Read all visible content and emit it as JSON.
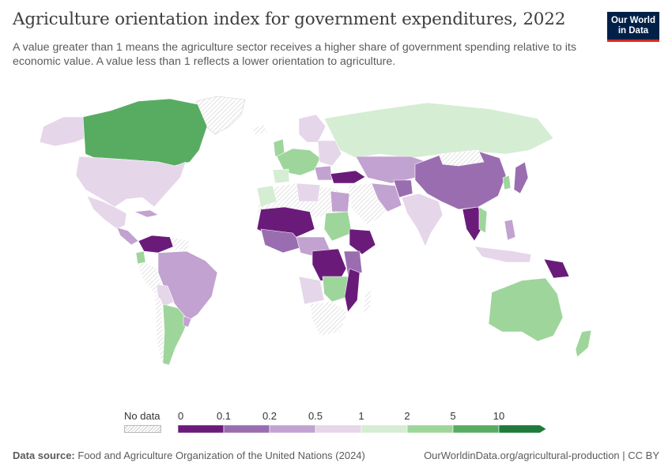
{
  "header": {
    "title": "Agriculture orientation index for government expenditures, 2022",
    "subtitle": "A value greater than 1 means the agriculture sector receives a higher share of government spending relative to its economic value. A value less than 1 reflects a lower orientation to agriculture."
  },
  "logo": {
    "line1": "Our World",
    "line2": "in Data"
  },
  "legend": {
    "no_data_label": "No data",
    "ticks": [
      "0",
      "0.1",
      "0.2",
      "0.5",
      "1",
      "2",
      "5",
      "10"
    ],
    "bins": [
      {
        "from": "0",
        "to": "0.1",
        "color": "#6a1b7a"
      },
      {
        "from": "0.1",
        "to": "0.2",
        "color": "#9a6db0"
      },
      {
        "from": "0.2",
        "to": "0.5",
        "color": "#c2a2d0"
      },
      {
        "from": "0.5",
        "to": "1",
        "color": "#e6d6ea"
      },
      {
        "from": "1",
        "to": "2",
        "color": "#d5edd3"
      },
      {
        "from": "2",
        "to": "5",
        "color": "#9ed59b"
      },
      {
        "from": "5",
        "to": "10",
        "color": "#58ac62"
      },
      {
        "from": "10",
        "to": "",
        "color": "#1f7a3b"
      }
    ]
  },
  "footer": {
    "source_label": "Data source:",
    "source_text": "Food and Agriculture Organization of the United Nations (2024)",
    "url": "OurWorldinData.org/agricultural-production | CC BY"
  },
  "colors": {
    "no_data_hatch": "#c8c8c8",
    "land_border": "#ffffff"
  }
}
